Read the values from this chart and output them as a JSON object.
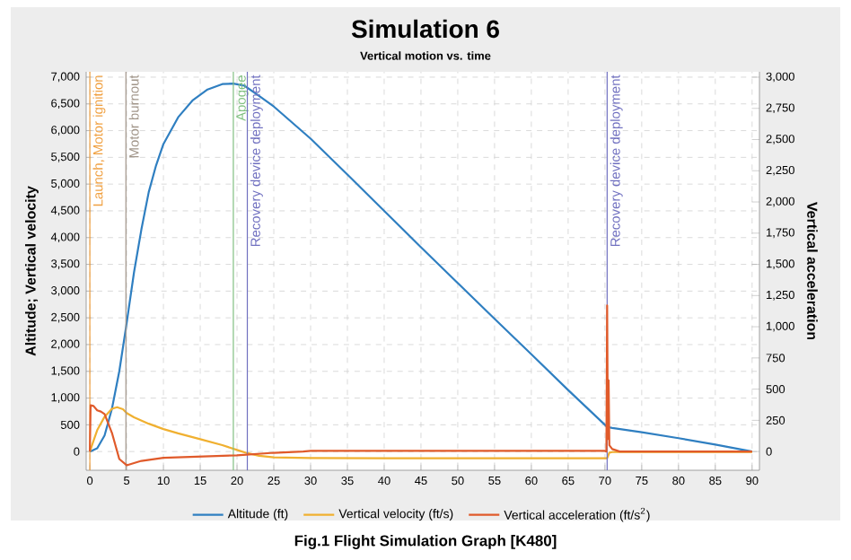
{
  "chart_data": {
    "type": "line",
    "title": "Simulation 6",
    "subtitle": "Vertical motion vs. time",
    "ylabel": "Altitude; Vertical velocity",
    "y2label": "Vertical acceleration",
    "xlim": [
      -0.5,
      91
    ],
    "ylim": [
      -350,
      7100
    ],
    "y2lim": [
      -150,
      3043
    ],
    "xticks": [
      0,
      5,
      10,
      15,
      20,
      25,
      30,
      35,
      40,
      45,
      50,
      55,
      60,
      65,
      70,
      75,
      80,
      85,
      90
    ],
    "yticks": [
      0,
      500,
      {
        "value": 1000,
        "label": "1,000"
      },
      {
        "value": 1500,
        "label": "1,500"
      },
      {
        "value": 2000,
        "label": "2,000"
      },
      {
        "value": 2500,
        "label": "2,500"
      },
      {
        "value": 3000,
        "label": "3,000"
      },
      {
        "value": 3500,
        "label": "3,500"
      },
      {
        "value": 4000,
        "label": "4,000"
      },
      {
        "value": 4500,
        "label": "4,500"
      },
      {
        "value": 5000,
        "label": "5,000"
      },
      {
        "value": 5500,
        "label": "5,500"
      },
      {
        "value": 6000,
        "label": "6,000"
      },
      {
        "value": 6500,
        "label": "6,500"
      },
      {
        "value": 7000,
        "label": "7,000"
      }
    ],
    "y2ticks": [
      0,
      250,
      500,
      750,
      {
        "value": 1000,
        "label": "1,000"
      },
      {
        "value": 1250,
        "label": "1,250"
      },
      {
        "value": 1500,
        "label": "1,500"
      },
      {
        "value": 1750,
        "label": "1,750"
      },
      {
        "value": 2000,
        "label": "2,000"
      },
      {
        "value": 2250,
        "label": "2,250"
      },
      {
        "value": 2500,
        "label": "2,500"
      },
      {
        "value": 2750,
        "label": "2,750"
      },
      {
        "value": 3000,
        "label": "3,000"
      }
    ],
    "grid": true,
    "legend": "bottom",
    "series": [
      {
        "name": "Altitude (ft)",
        "color": "#2f7fc1",
        "x": [
          0,
          1,
          2,
          3,
          4,
          5,
          6,
          7,
          8,
          9,
          10,
          12,
          14,
          16,
          18,
          19.5,
          21,
          23,
          25,
          30,
          35,
          40,
          45,
          50,
          55,
          60,
          65,
          70,
          70.3,
          71,
          75,
          80,
          85,
          90
        ],
        "values": [
          0,
          60,
          300,
          800,
          1500,
          2400,
          3350,
          4150,
          4850,
          5350,
          5750,
          6250,
          6570,
          6770,
          6870,
          6880,
          6840,
          6650,
          6450,
          5850,
          5180,
          4500,
          3820,
          3150,
          2480,
          1820,
          1150,
          500,
          460,
          440,
          360,
          250,
          130,
          0
        ]
      },
      {
        "name": "Vertical velocity (ft/s)",
        "color": "#f0b030",
        "x": [
          0,
          0.5,
          1,
          2,
          3,
          3.7,
          4.5,
          5,
          6,
          8,
          10,
          12,
          15,
          18,
          20,
          21.4,
          23,
          25,
          30,
          40,
          50,
          60,
          70,
          70.3,
          70.6,
          71,
          80,
          90
        ],
        "values": [
          0,
          200,
          400,
          650,
          800,
          830,
          790,
          720,
          640,
          520,
          420,
          340,
          230,
          120,
          30,
          -30,
          -80,
          -110,
          -120,
          -125,
          -125,
          -125,
          -125,
          -125,
          -20,
          -10,
          -10,
          -10
        ]
      },
      {
        "name": "Vertical acceleration (ft/s$^{2}$)",
        "color": "#e05a2a",
        "axis": "y2",
        "x": [
          0,
          0.1,
          0.5,
          1,
          1.5,
          2,
          3,
          4,
          5,
          7,
          10,
          15,
          20,
          25,
          29,
          30,
          70,
          70.2,
          70.3,
          70.4,
          70.5,
          70.6,
          71,
          72,
          90
        ],
        "values": [
          0,
          370,
          365,
          330,
          320,
          300,
          150,
          -60,
          -110,
          -75,
          -50,
          -40,
          -30,
          -10,
          0,
          5,
          5,
          0,
          1170,
          100,
          570,
          50,
          20,
          0,
          0
        ]
      }
    ],
    "ref_lines": [
      {
        "axis": "x",
        "value": 0,
        "label": "Launch, Motor ignition",
        "color": "#f0a040"
      },
      {
        "axis": "x",
        "value": 4.9,
        "label": "Motor burnout",
        "color": "#a09488"
      },
      {
        "axis": "x",
        "value": 19.5,
        "label": "Apogee",
        "color": "#80c080"
      },
      {
        "axis": "x",
        "value": 21.4,
        "label": "Recovery device deployment",
        "color": "#7070c0"
      },
      {
        "axis": "x",
        "value": 70.3,
        "label": "Recovery device deployment",
        "color": "#7070c0"
      }
    ],
    "annotations": [
      "Fig.1 Flight Simulation Graph [K480]"
    ]
  }
}
